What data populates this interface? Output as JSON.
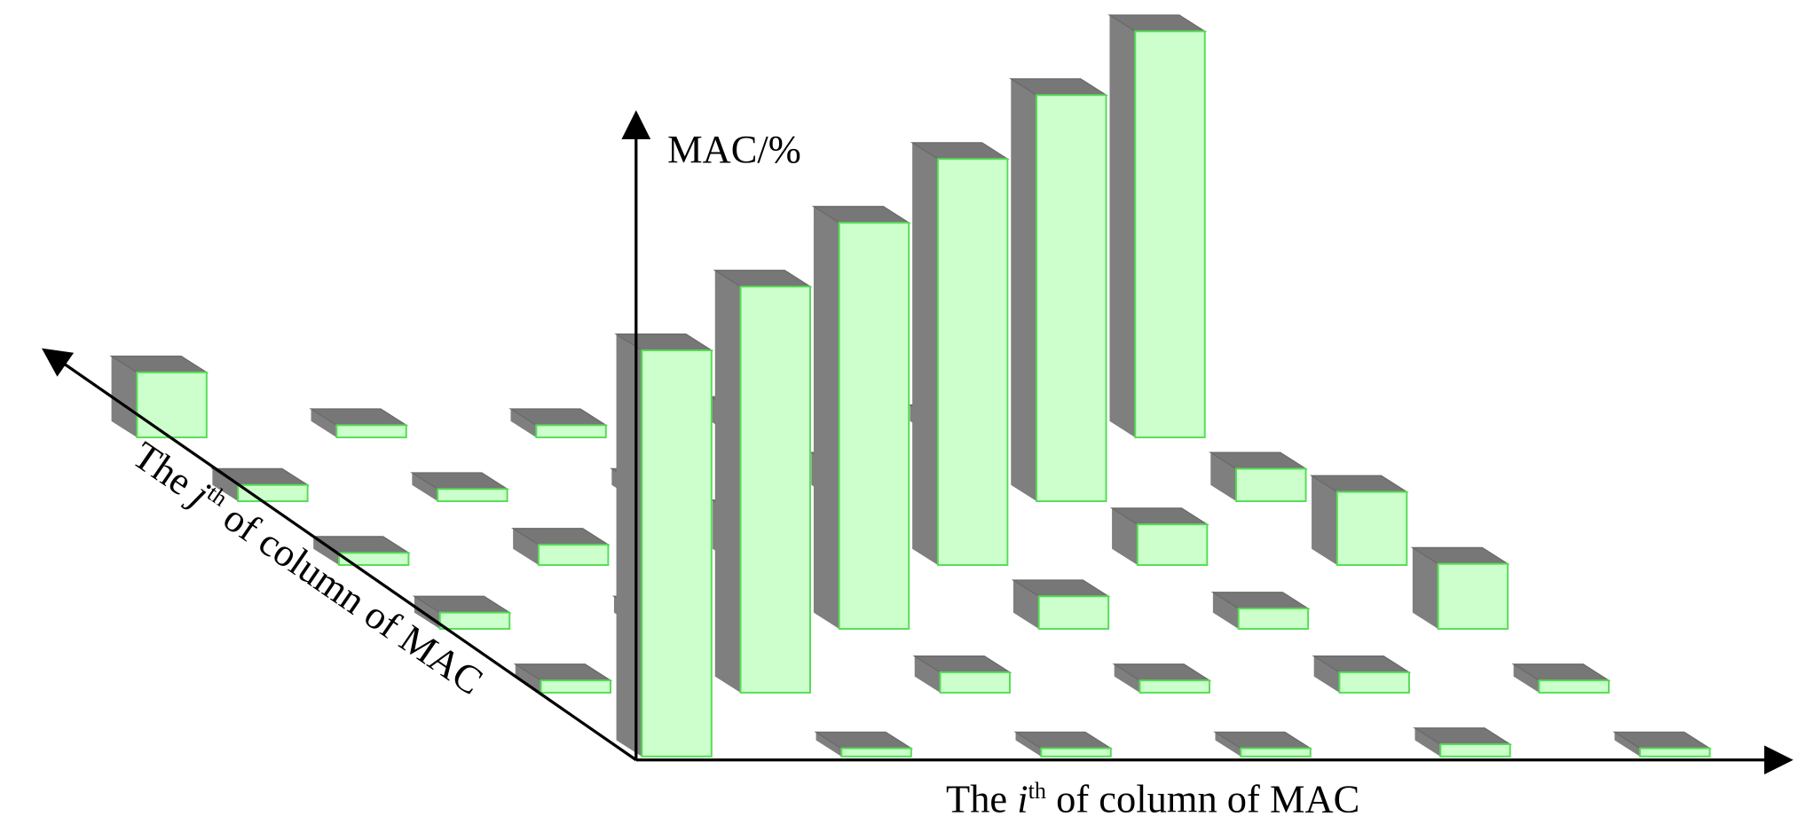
{
  "axes": {
    "z_label": "MAC/%",
    "j_label": {
      "before": "The ",
      "index": "j",
      "sup": "th",
      "after": " of column of MAC"
    },
    "i_label": {
      "before": "The ",
      "index": "i",
      "sup": "th",
      "after": " of column of MAC"
    }
  },
  "matrix": [
    [
      100,
      2,
      2,
      2,
      3,
      2
    ],
    [
      3,
      100,
      5,
      3,
      5,
      3
    ],
    [
      4,
      4,
      100,
      8,
      5,
      16
    ],
    [
      3,
      5,
      12,
      100,
      10,
      18
    ],
    [
      4,
      3,
      4,
      8,
      100,
      8
    ],
    [
      16,
      3,
      3,
      6,
      4,
      100
    ]
  ]
}
